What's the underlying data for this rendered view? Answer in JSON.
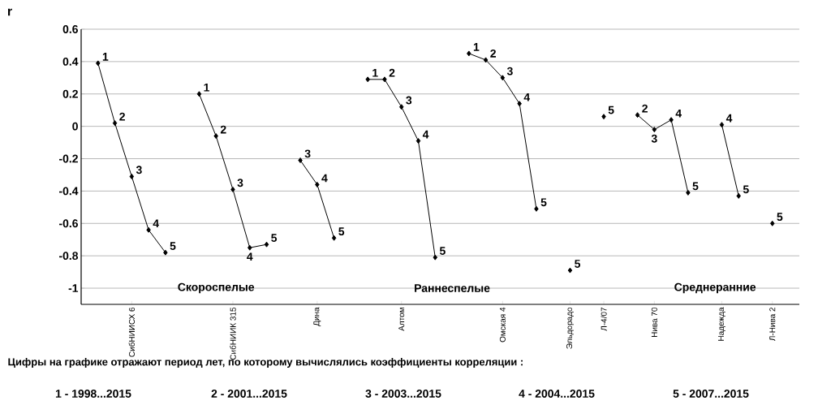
{
  "chart_data": {
    "type": "line",
    "ylabel": "r",
    "categories": [
      null,
      null,
      "СибНИИСХ 6",
      null,
      null,
      null,
      null,
      null,
      "СибНИИК 315",
      null,
      null,
      null,
      null,
      "Дина",
      null,
      null,
      null,
      null,
      "Алтом",
      null,
      null,
      null,
      null,
      null,
      "Омская 4",
      null,
      null,
      null,
      "Эльдорадо",
      null,
      "Л-4/07",
      null,
      null,
      "Нива 70",
      null,
      null,
      null,
      "Надежда",
      null,
      null,
      "Л-Нива 2"
    ],
    "series": [
      {
        "color": "#000000",
        "values": [
          0.39,
          0.02,
          -0.31,
          -0.64,
          -0.78,
          null,
          0.2,
          -0.06,
          -0.39,
          -0.75,
          -0.73,
          null,
          -0.21,
          -0.36,
          -0.69,
          null,
          0.29,
          0.29,
          0.12,
          -0.09,
          -0.81,
          null,
          0.45,
          0.41,
          0.3,
          0.14,
          -0.51,
          null,
          -0.89,
          null,
          0.06,
          null,
          0.07,
          -0.02,
          0.04,
          -0.41,
          null,
          0.01,
          -0.43,
          null,
          -0.6
        ]
      }
    ],
    "ylim": [
      -1.1,
      0.6
    ],
    "yticks": [
      -1,
      -0.8,
      -0.6,
      -0.4,
      -0.2,
      0,
      0.2,
      0.4,
      0.6
    ],
    "grid": "y",
    "marker": "diamond",
    "line_style": "solid",
    "annotations": [
      "Скороспелые",
      "Раннеспелые",
      "Среднеранние",
      "Цифры на графике отражают период лет, по которому вычислялись коэффициенты корреляции :",
      "1 - 1998...2015",
      "2 - 2001...2015",
      "3 - 2003...2015",
      "4 - 2004...2015",
      "5 - 2007...2015",
      "1",
      "2",
      "3",
      "4",
      "5",
      "1",
      "2",
      "3",
      "4",
      "5",
      "3",
      "4",
      "5",
      "1",
      "2",
      "3",
      "4",
      "5",
      "1",
      "2",
      "3",
      "4",
      "5",
      "5",
      "5",
      "2",
      "3",
      "4",
      "5",
      "4",
      "5",
      "5"
    ]
  }
}
